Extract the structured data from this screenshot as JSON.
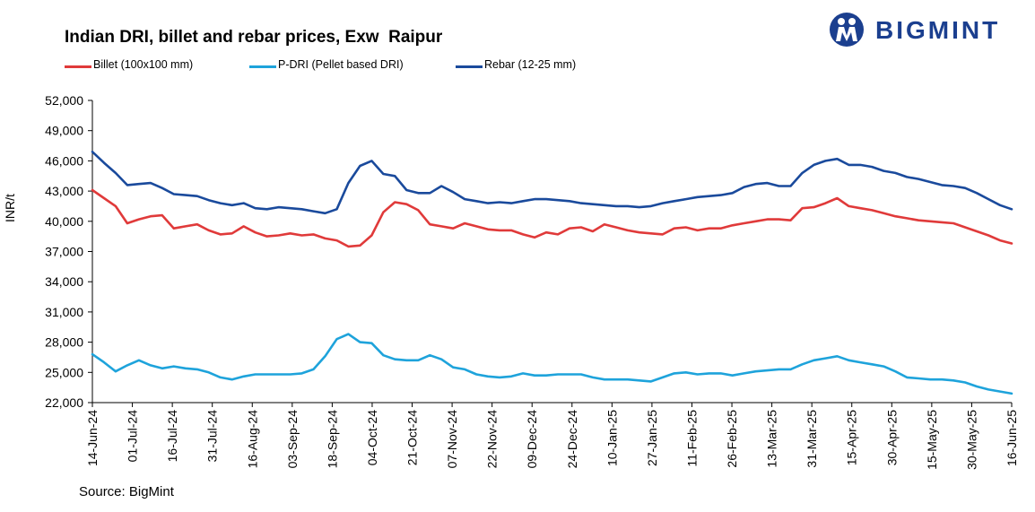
{
  "title": "Indian DRI, billet and rebar prices, Exw  Raipur",
  "source": "Source: BigMint",
  "logo": {
    "text": "BIGMINT",
    "color": "#1b3f8f"
  },
  "chart_data": {
    "type": "line",
    "title": "Indian DRI, billet and rebar prices, Exw  Raipur",
    "xlabel": "",
    "ylabel": "INR/t",
    "ylim": [
      22000,
      52000
    ],
    "yticks": [
      22000,
      25000,
      28000,
      31000,
      34000,
      37000,
      40000,
      43000,
      46000,
      49000,
      52000
    ],
    "ytick_labels": [
      "22,000",
      "25,000",
      "28,000",
      "31,000",
      "34,000",
      "37,000",
      "40,000",
      "43,000",
      "46,000",
      "49,000",
      "52,000"
    ],
    "x_tick_labels": [
      "14-Jun-24",
      "01-Jul-24",
      "16-Jul-24",
      "31-Jul-24",
      "16-Aug-24",
      "03-Sep-24",
      "18-Sep-24",
      "04-Oct-24",
      "21-Oct-24",
      "07-Nov-24",
      "22-Nov-24",
      "09-Dec-24",
      "24-Dec-24",
      "10-Jan-25",
      "27-Jan-25",
      "11-Feb-25",
      "26-Feb-25",
      "13-Mar-25",
      "31-Mar-25",
      "15-Apr-25",
      "30-Apr-25",
      "15-May-25",
      "30-May-25",
      "16-Jun-25"
    ],
    "grid": false,
    "legend_position": "top",
    "series": [
      {
        "name": "Billet (100x100 mm)",
        "color": "#e03a3a",
        "values": [
          43100,
          42300,
          41500,
          39800,
          40200,
          40500,
          40600,
          39300,
          39500,
          39700,
          39100,
          38700,
          38800,
          39500,
          38900,
          38500,
          38600,
          38800,
          38600,
          38700,
          38300,
          38100,
          37500,
          37600,
          38600,
          40900,
          41900,
          41700,
          41100,
          39700,
          39500,
          39300,
          39800,
          39500,
          39200,
          39100,
          39100,
          38700,
          38400,
          38900,
          38700,
          39300,
          39400,
          39000,
          39700,
          39400,
          39100,
          38900,
          38800,
          38700,
          39300,
          39400,
          39100,
          39300,
          39300,
          39600,
          39800,
          40000,
          40200,
          40200,
          40100,
          41300,
          41400,
          41800,
          42300,
          41500,
          41300,
          41100,
          40800,
          40500,
          40300,
          40100,
          40000,
          39900,
          39800,
          39400,
          39000,
          38600,
          38100,
          37800
        ]
      },
      {
        "name": "P-DRI (Pellet based DRI)",
        "color": "#1ea3db",
        "values": [
          26800,
          26000,
          25100,
          25700,
          26200,
          25700,
          25400,
          25600,
          25400,
          25300,
          25000,
          24500,
          24300,
          24600,
          24800,
          24800,
          24800,
          24800,
          24900,
          25300,
          26600,
          28300,
          28800,
          28000,
          27900,
          26700,
          26300,
          26200,
          26200,
          26700,
          26300,
          25500,
          25300,
          24800,
          24600,
          24500,
          24600,
          24900,
          24700,
          24700,
          24800,
          24800,
          24800,
          24500,
          24300,
          24300,
          24300,
          24200,
          24100,
          24500,
          24900,
          25000,
          24800,
          24900,
          24900,
          24700,
          24900,
          25100,
          25200,
          25300,
          25300,
          25800,
          26200,
          26400,
          26600,
          26200,
          26000,
          25800,
          25600,
          25100,
          24500,
          24400,
          24300,
          24300,
          24200,
          24000,
          23600,
          23300,
          23100,
          22900
        ]
      },
      {
        "name": "Rebar (12-25 mm)",
        "color": "#1a4a9c",
        "values": [
          46900,
          45800,
          44800,
          43600,
          43700,
          43800,
          43300,
          42700,
          42600,
          42500,
          42100,
          41800,
          41600,
          41800,
          41300,
          41200,
          41400,
          41300,
          41200,
          41000,
          40800,
          41200,
          43800,
          45500,
          46000,
          44700,
          44500,
          43100,
          42800,
          42800,
          43500,
          42900,
          42200,
          42000,
          41800,
          41900,
          41800,
          42000,
          42200,
          42200,
          42100,
          42000,
          41800,
          41700,
          41600,
          41500,
          41500,
          41400,
          41500,
          41800,
          42000,
          42200,
          42400,
          42500,
          42600,
          42800,
          43400,
          43700,
          43800,
          43500,
          43500,
          44800,
          45600,
          46000,
          46200,
          45600,
          45600,
          45400,
          45000,
          44800,
          44400,
          44200,
          43900,
          43600,
          43500,
          43300,
          42800,
          42200,
          41600,
          41200
        ]
      }
    ]
  }
}
